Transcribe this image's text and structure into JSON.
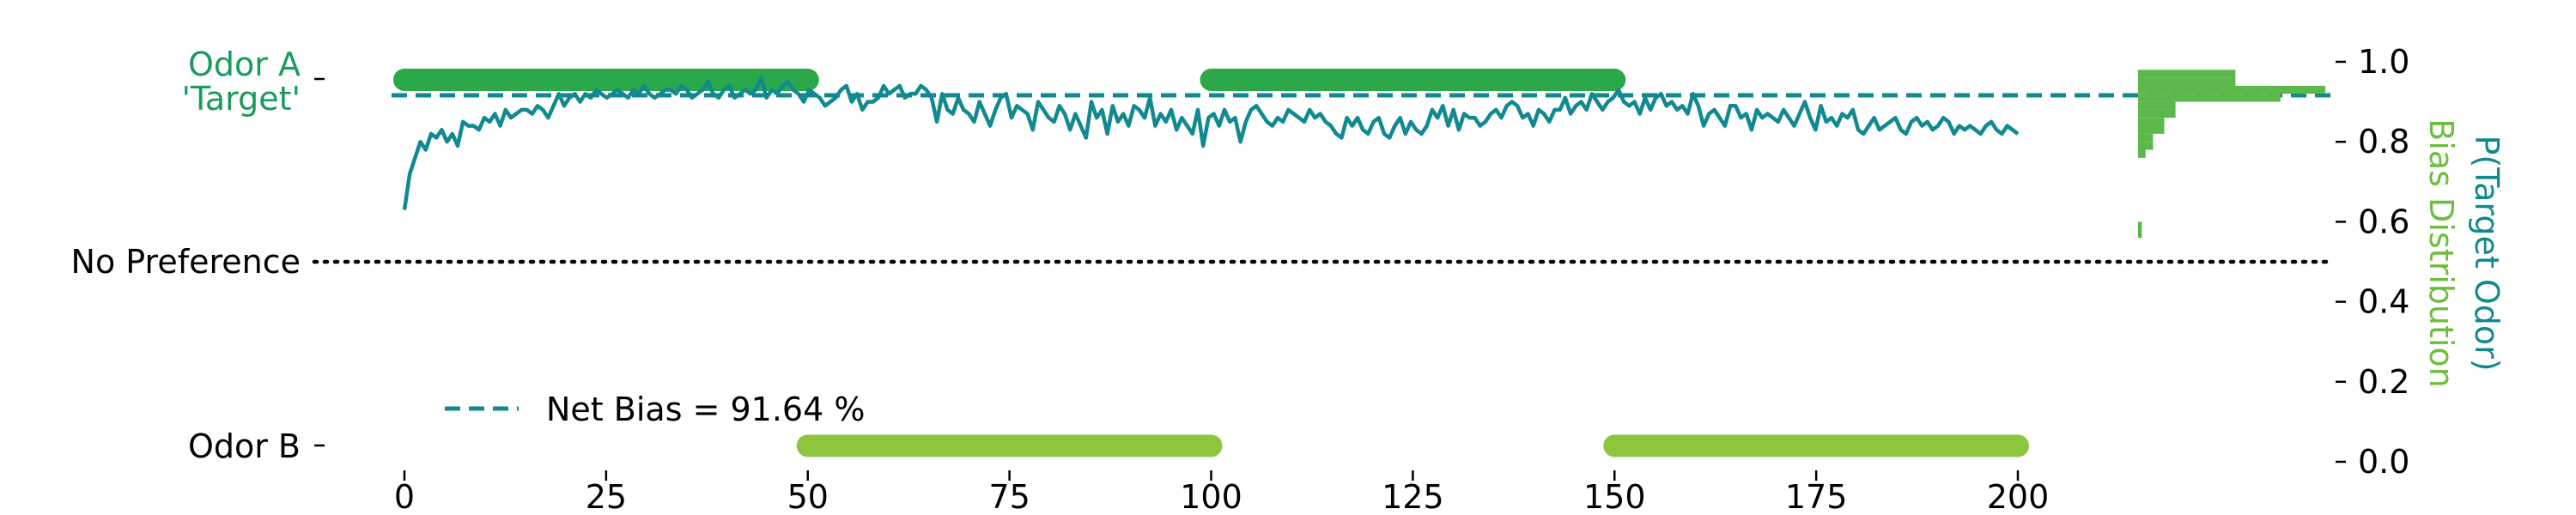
{
  "chart_data": {
    "type": "line",
    "title": "",
    "xlabel": "",
    "ylabel_right": "P(Target Odor)",
    "ylabel_right2": "Bias Distribution",
    "xlim": [
      -2,
      202
    ],
    "ylim": [
      0.0,
      1.0
    ],
    "x_ticks": [
      0,
      25,
      50,
      75,
      100,
      125,
      150,
      175,
      200
    ],
    "y_ticks": [
      0.0,
      0.2,
      0.4,
      0.6,
      0.8,
      1.0
    ],
    "y_tick_labels": [
      "0.0",
      "0.2",
      "0.4",
      "0.6",
      "0.8",
      "1.0"
    ],
    "left_labels": {
      "odor_a_line1": "Odor A",
      "odor_a_line2": "'Target'",
      "no_preference": "No Preference",
      "odor_b": "Odor B"
    },
    "legend": {
      "label": "Net Bias = 91.64 %",
      "placement": "lower-left"
    },
    "net_bias": 0.9164,
    "no_preference_level": 0.5,
    "colors": {
      "curve": "#108a90",
      "odor_a": "#2aa84a",
      "odor_b": "#8cc63f",
      "label_a": "#1a9a5c",
      "hist": "#5cb84a",
      "axis": "#000000"
    },
    "odor_a_blocks": [
      [
        0,
        50
      ],
      [
        100,
        150
      ]
    ],
    "odor_b_blocks": [
      [
        50,
        100
      ],
      [
        150,
        200
      ]
    ],
    "odor_a_level": 0.955,
    "odor_b_level": 0.04,
    "p_target": [
      0.63,
      0.72,
      0.76,
      0.8,
      0.78,
      0.82,
      0.81,
      0.83,
      0.8,
      0.82,
      0.79,
      0.85,
      0.84,
      0.84,
      0.83,
      0.86,
      0.85,
      0.87,
      0.84,
      0.88,
      0.86,
      0.87,
      0.88,
      0.88,
      0.87,
      0.89,
      0.88,
      0.86,
      0.89,
      0.92,
      0.89,
      0.91,
      0.92,
      0.9,
      0.92,
      0.91,
      0.93,
      0.92,
      0.91,
      0.92,
      0.93,
      0.92,
      0.91,
      0.93,
      0.92,
      0.94,
      0.92,
      0.91,
      0.92,
      0.93,
      0.93,
      0.92,
      0.94,
      0.93,
      0.91,
      0.92,
      0.93,
      0.95,
      0.92,
      0.91,
      0.93,
      0.94,
      0.91,
      0.92,
      0.93,
      0.92,
      0.93,
      0.96,
      0.91,
      0.93,
      0.92,
      0.94,
      0.95,
      0.93,
      0.92,
      0.9,
      0.93,
      0.92,
      0.91,
      0.89,
      0.9,
      0.91,
      0.93,
      0.94,
      0.9,
      0.92,
      0.88,
      0.9,
      0.9,
      0.91,
      0.94,
      0.92,
      0.93,
      0.94,
      0.91,
      0.92,
      0.92,
      0.94,
      0.93,
      0.91,
      0.85,
      0.92,
      0.88,
      0.87,
      0.91,
      0.88,
      0.87,
      0.85,
      0.9,
      0.87,
      0.84,
      0.88,
      0.91,
      0.92,
      0.86,
      0.89,
      0.88,
      0.87,
      0.83,
      0.9,
      0.88,
      0.86,
      0.85,
      0.89,
      0.87,
      0.83,
      0.87,
      0.84,
      0.81,
      0.9,
      0.86,
      0.88,
      0.82,
      0.89,
      0.85,
      0.87,
      0.84,
      0.89,
      0.88,
      0.86,
      0.91,
      0.84,
      0.87,
      0.85,
      0.88,
      0.83,
      0.86,
      0.84,
      0.82,
      0.88,
      0.79,
      0.86,
      0.87,
      0.84,
      0.88,
      0.85,
      0.86,
      0.8,
      0.85,
      0.88,
      0.89,
      0.87,
      0.85,
      0.84,
      0.86,
      0.85,
      0.88,
      0.87,
      0.86,
      0.85,
      0.88,
      0.86,
      0.87,
      0.85,
      0.84,
      0.82,
      0.81,
      0.86,
      0.84,
      0.86,
      0.83,
      0.82,
      0.85,
      0.86,
      0.82,
      0.81,
      0.84,
      0.86,
      0.82,
      0.85,
      0.83,
      0.82,
      0.84,
      0.88,
      0.86,
      0.89,
      0.84,
      0.88,
      0.83,
      0.87,
      0.86,
      0.86,
      0.84,
      0.85,
      0.87,
      0.88,
      0.86,
      0.89,
      0.9,
      0.89,
      0.86,
      0.87,
      0.84,
      0.88,
      0.87,
      0.85,
      0.88,
      0.88,
      0.91,
      0.87,
      0.89,
      0.9,
      0.88,
      0.92,
      0.9,
      0.88,
      0.9,
      0.91,
      0.93,
      0.9,
      0.89,
      0.9,
      0.87,
      0.91,
      0.88,
      0.91,
      0.92,
      0.89,
      0.9,
      0.88,
      0.89,
      0.87,
      0.92,
      0.89,
      0.84,
      0.87,
      0.88,
      0.86,
      0.84,
      0.89,
      0.89,
      0.86,
      0.87,
      0.83,
      0.88,
      0.86,
      0.87,
      0.86,
      0.85,
      0.88,
      0.86,
      0.84,
      0.87,
      0.9,
      0.86,
      0.83,
      0.89,
      0.85,
      0.86,
      0.84,
      0.87,
      0.86,
      0.88,
      0.83,
      0.82,
      0.84,
      0.86,
      0.83,
      0.84,
      0.85,
      0.86,
      0.83,
      0.82,
      0.85,
      0.86,
      0.84,
      0.85,
      0.83,
      0.84,
      0.86,
      0.85,
      0.82,
      0.84,
      0.83,
      0.84,
      0.83,
      0.82,
      0.84,
      0.85,
      0.83,
      0.82,
      0.84,
      0.83,
      0.82
    ],
    "bias_histogram": [
      {
        "y0": 0.56,
        "y1": 0.58,
        "value": 0.02
      },
      {
        "y0": 0.58,
        "y1": 0.6,
        "value": 0.02
      },
      {
        "y0": 0.76,
        "y1": 0.78,
        "value": 0.04
      },
      {
        "y0": 0.78,
        "y1": 0.8,
        "value": 0.08
      },
      {
        "y0": 0.8,
        "y1": 0.82,
        "value": 0.08
      },
      {
        "y0": 0.82,
        "y1": 0.84,
        "value": 0.14
      },
      {
        "y0": 0.84,
        "y1": 0.86,
        "value": 0.14
      },
      {
        "y0": 0.86,
        "y1": 0.88,
        "value": 0.2
      },
      {
        "y0": 0.88,
        "y1": 0.9,
        "value": 0.2
      },
      {
        "y0": 0.9,
        "y1": 0.92,
        "value": 0.76
      },
      {
        "y0": 0.92,
        "y1": 0.94,
        "value": 1.0
      },
      {
        "y0": 0.94,
        "y1": 0.96,
        "value": 0.52
      },
      {
        "y0": 0.96,
        "y1": 0.98,
        "value": 0.52
      }
    ]
  }
}
